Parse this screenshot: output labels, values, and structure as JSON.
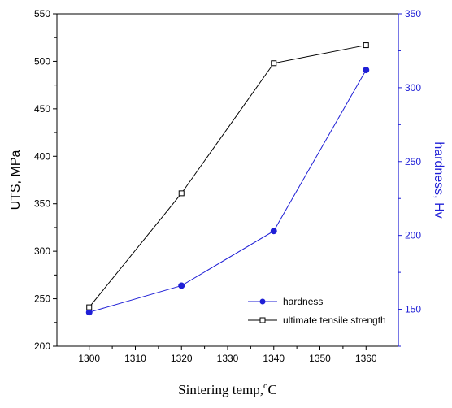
{
  "chart_data": {
    "type": "line",
    "xlabel_main": "Sintering temp,",
    "xlabel_unit": "C",
    "xlabel_degree": "o",
    "ylabel_left": "UTS, MPa",
    "ylabel_right": "hardness, Hv",
    "x": [
      1300,
      1320,
      1340,
      1360
    ],
    "xticks": [
      1300,
      1310,
      1320,
      1330,
      1340,
      1350,
      1360
    ],
    "xlim": [
      1293,
      1367
    ],
    "ylim_left": [
      200,
      550
    ],
    "yticks_left": [
      200,
      250,
      300,
      350,
      400,
      450,
      500,
      550
    ],
    "ylim_right": [
      125,
      350
    ],
    "yticks_right": [
      150,
      200,
      250,
      300,
      350
    ],
    "right_axis_color": "#1f1fd6",
    "grid": false,
    "legend_position": "bottom-right",
    "series": [
      {
        "name": "hardness",
        "axis": "right",
        "color": "#1f1fd6",
        "marker": "filled-circle",
        "values": [
          148,
          166,
          203,
          312
        ]
      },
      {
        "name": "ultimate tensile strength",
        "axis": "left",
        "color": "#000000",
        "marker": "open-square",
        "values": [
          241,
          361,
          498,
          517
        ]
      }
    ]
  }
}
